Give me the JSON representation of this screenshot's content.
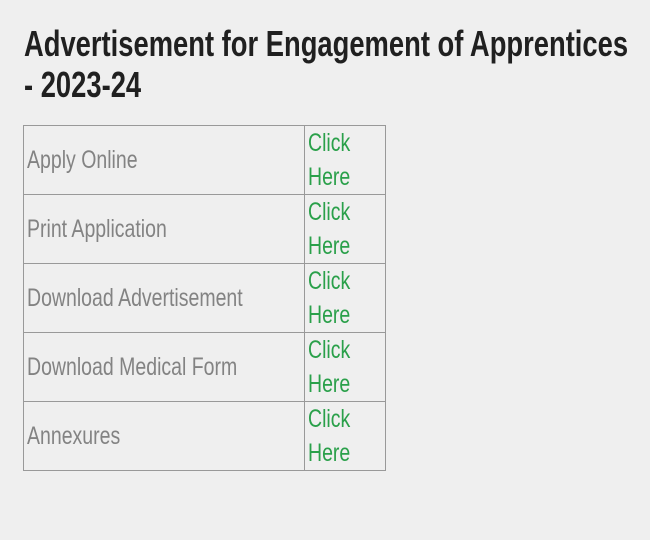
{
  "page": {
    "background_color": "#efefef"
  },
  "heading": {
    "title": "Advertisement for Engagement of Apprentices - 2023-24",
    "lines": [
      "Advertisement for Engagement of Apprentices",
      "- 2023-24"
    ],
    "color": "#202020"
  },
  "links_table": {
    "border_color": "#999999",
    "label_color": "#838383",
    "link_color": "#2aa04a",
    "rows": [
      {
        "label": "Apply Online",
        "link_text": "Click Here"
      },
      {
        "label": "Print Application",
        "link_text": "Click Here"
      },
      {
        "label": "Download Advertisement",
        "link_text": "Click Here"
      },
      {
        "label": "Download Medical Form",
        "link_text": "Click Here"
      },
      {
        "label": "Annexures",
        "link_text": "Click Here"
      }
    ]
  }
}
